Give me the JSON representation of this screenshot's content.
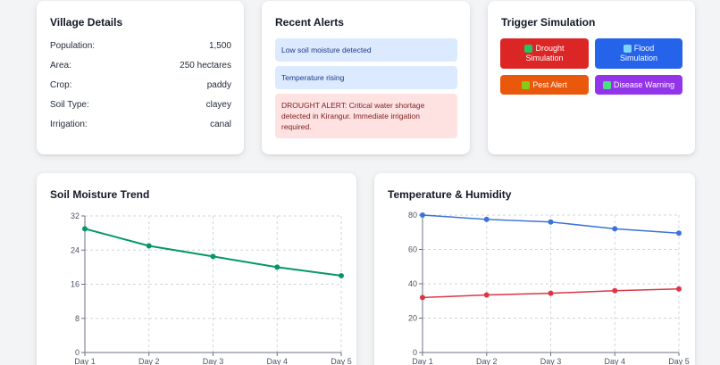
{
  "village": {
    "title": "Village Details",
    "rows": [
      {
        "label": "Population:",
        "value": "1,500"
      },
      {
        "label": "Area:",
        "value": "250 hectares"
      },
      {
        "label": "Crop:",
        "value": "paddy"
      },
      {
        "label": "Soil Type:",
        "value": "clayey"
      },
      {
        "label": "Irrigation:",
        "value": "canal"
      }
    ]
  },
  "alerts": {
    "title": "Recent Alerts",
    "items": [
      {
        "text": "Low soil moisture detected",
        "level": "info"
      },
      {
        "text": "Temperature rising",
        "level": "info"
      },
      {
        "text": "DROUGHT ALERT: Critical water shortage detected in Kirangur. Immediate irrigation required.",
        "level": "critical"
      },
      {
        "text": "",
        "level": "warning"
      }
    ]
  },
  "simulation": {
    "title": "Trigger Simulation",
    "buttons": [
      {
        "line1": "Drought",
        "line2": "Simulation",
        "color": "#dc2626",
        "icon": "cactus-icon",
        "icon_color": "#22c55e"
      },
      {
        "line1": "Flood",
        "line2": "Simulation",
        "color": "#2563eb",
        "icon": "wave-icon",
        "icon_color": "#7dd3fc"
      },
      {
        "line1": "Pest Alert",
        "line2": "",
        "color": "#ea580c",
        "icon": "bug-icon",
        "icon_color": "#84cc16"
      },
      {
        "line1": "Disease Warning",
        "line2": "",
        "color": "#9333ea",
        "icon": "microbe-icon",
        "icon_color": "#4ade80"
      }
    ]
  },
  "soil_chart": {
    "title": "Soil Moisture Trend",
    "chart_data": {
      "type": "line",
      "x": [
        "Day 1",
        "Day 2",
        "Day 3",
        "Day 4",
        "Day 5"
      ],
      "series": [
        {
          "values": [
            29,
            25,
            22.5,
            20,
            18
          ],
          "color": "#059669"
        }
      ],
      "ylim": [
        0,
        32
      ],
      "yticks": [
        0,
        8,
        16,
        24,
        32
      ],
      "grid": true
    }
  },
  "temp_chart": {
    "title": "Temperature & Humidity",
    "chart_data": {
      "type": "line",
      "x": [
        "Day 1",
        "Day 2",
        "Day 3",
        "Day 4",
        "Day 5"
      ],
      "series": [
        {
          "values": [
            80,
            77.5,
            76,
            72,
            69.5
          ],
          "color": "#3b72d9"
        },
        {
          "values": [
            32,
            33.5,
            34.5,
            36,
            37
          ],
          "color": "#dc3545"
        }
      ],
      "ylim": [
        0,
        80
      ],
      "yticks": [
        0,
        20,
        40,
        60,
        80
      ],
      "grid": true
    }
  }
}
